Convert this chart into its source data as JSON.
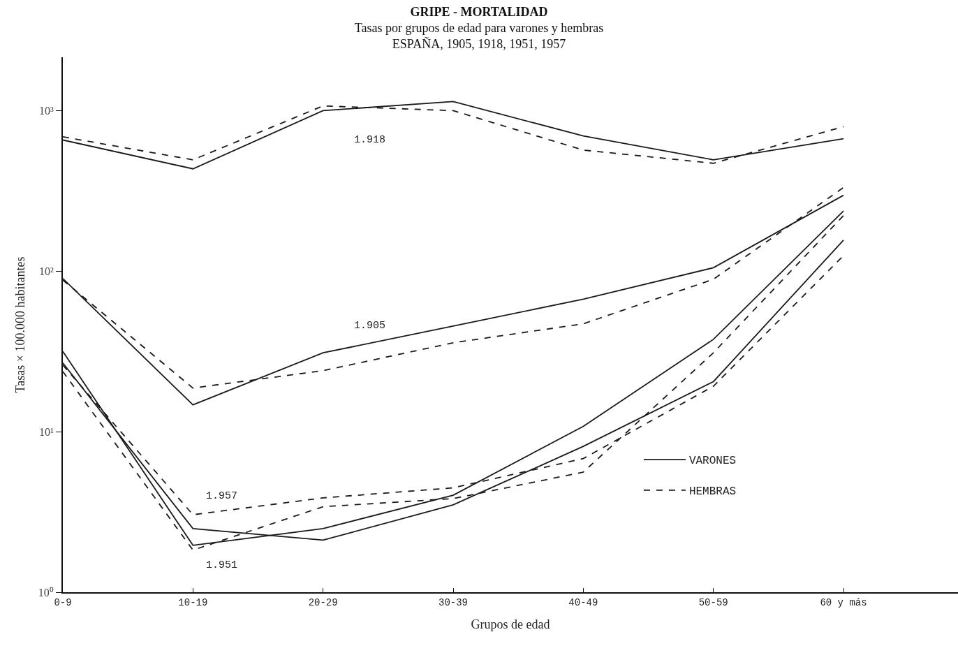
{
  "chart_data": {
    "type": "line",
    "title": "GRIPE - MORTALIDAD",
    "subtitle": "Tasas por grupos de edad para varones y hembras\nESPAÑA, 1905, 1918, 1951, 1957",
    "xlabel": "Grupos de edad",
    "ylabel": "Tasas × 100.000 habitantes",
    "categories": [
      "0-9",
      "10-19",
      "20-29",
      "30-39",
      "40-49",
      "50-59",
      "60 y más"
    ],
    "series": [
      {
        "name": "VARONES",
        "color": "#1a1a1a",
        "line_style": "solid",
        "values": [
          656,
          434,
          1000,
          1140,
          695,
          494,
          668
        ]
      },
      {
        "name": "HEMBRAS",
        "color": "#1a1a1a",
        "line_style": "dashed",
        "values": [
          687,
          494,
          1070,
          1000,
          568,
          470,
          795
        ]
      },
      {
        "color": "#1a1a1a",
        "line_style": "solid",
        "values": [
          90,
          14.7,
          31,
          45.5,
          67,
          105,
          297
        ]
      },
      {
        "color": "#1a1a1a",
        "line_style": "dashed",
        "values": [
          88,
          18.7,
          24,
          35.8,
          47,
          89,
          332
        ]
      },
      {
        "color": "#1a1a1a",
        "line_style": "solid",
        "values": [
          26.8,
          2.49,
          2.11,
          3.5,
          8.1,
          20.5,
          156
        ]
      },
      {
        "color": "#1a1a1a",
        "line_style": "dashed",
        "values": [
          26,
          3.04,
          3.87,
          4.47,
          6.8,
          19.2,
          125
        ]
      },
      {
        "color": "#1a1a1a",
        "line_style": "solid",
        "values": [
          31.6,
          1.96,
          2.49,
          4.02,
          10.8,
          37.6,
          237
        ]
      },
      {
        "color": "#1a1a1a",
        "line_style": "dashed",
        "values": [
          23.7,
          1.83,
          3.41,
          3.83,
          5.6,
          31,
          222
        ]
      }
    ],
    "annotations": [
      "1.918",
      "1.905",
      "1.957",
      "1.951"
    ],
    "log": "y",
    "ylim": [
      1,
      2150
    ],
    "yticks": [
      {
        "value": 1,
        "label": "10⁰"
      },
      {
        "value": 10,
        "label": "10¹"
      },
      {
        "value": 100,
        "label": "10²"
      },
      {
        "value": 1000,
        "label": "10³"
      }
    ],
    "grid": false,
    "legend": "bottom right",
    "marker": "none"
  }
}
